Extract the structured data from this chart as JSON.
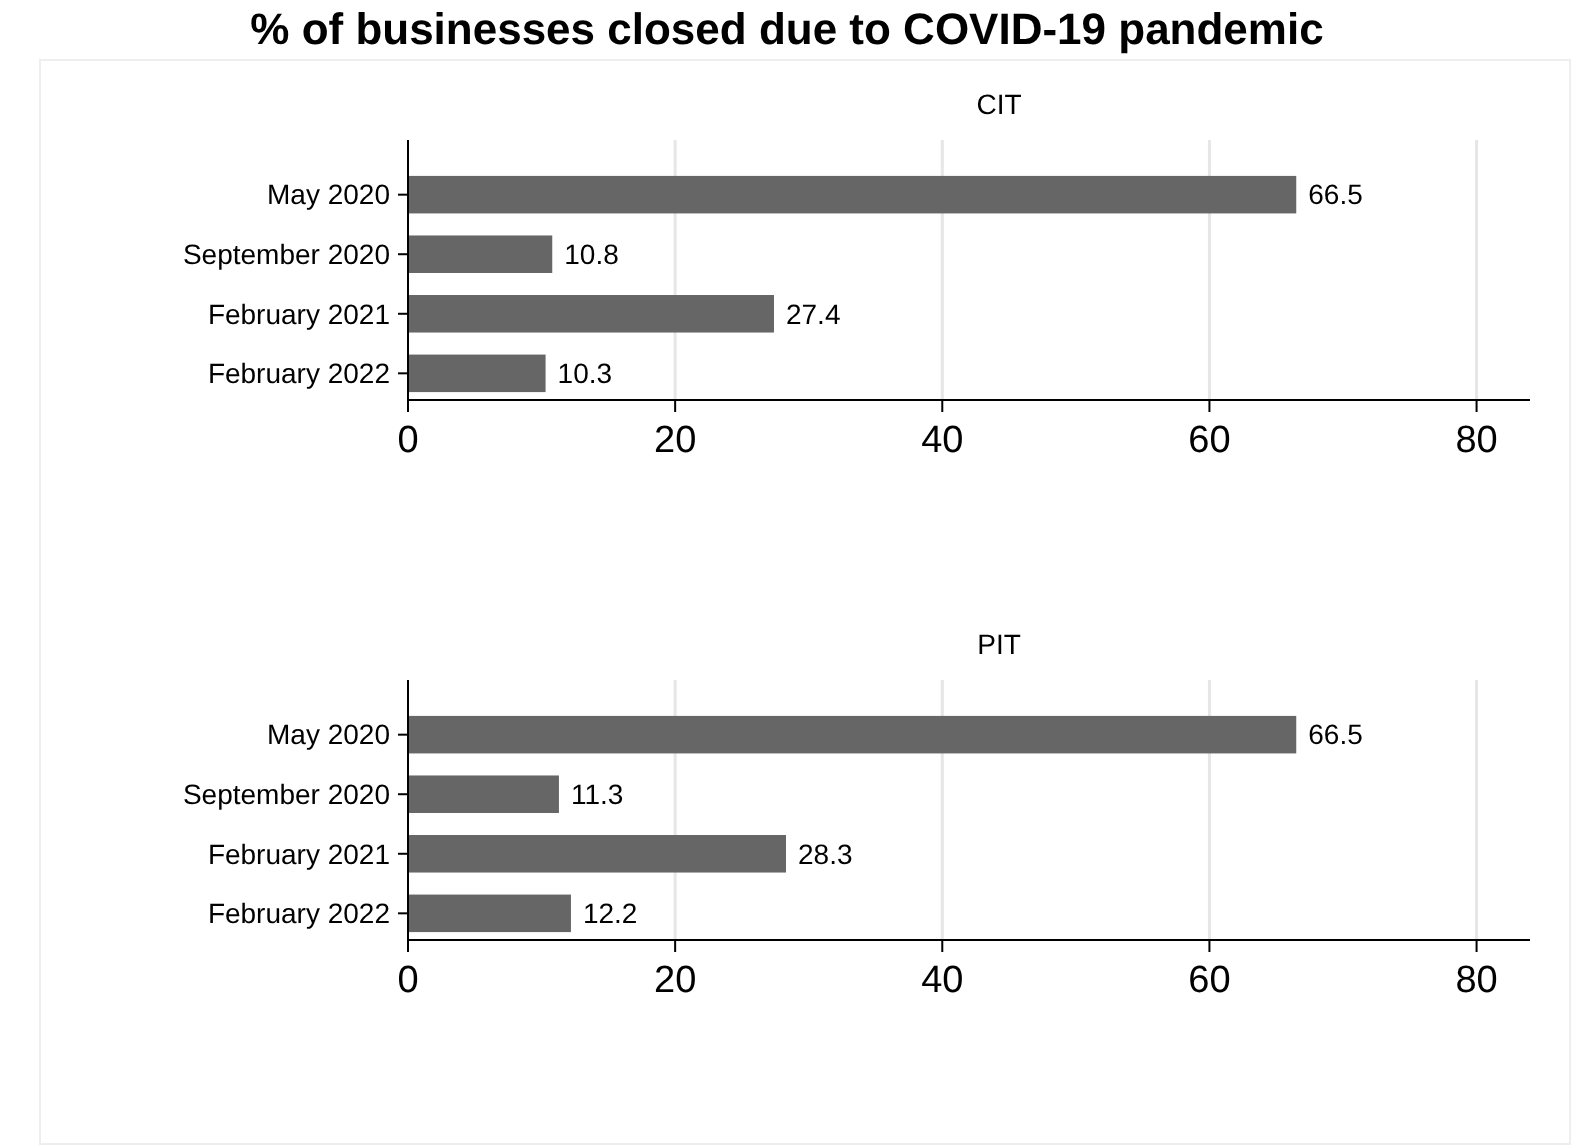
{
  "chart_data": [
    {
      "type": "bar",
      "orientation": "horizontal",
      "title": "% of businesses closed due to COVID-19 pandemic",
      "subtitle": "CIT",
      "categories": [
        "May 2020",
        "September 2020",
        "February 2021",
        "February 2022"
      ],
      "values": [
        66.5,
        10.8,
        27.4,
        10.3
      ],
      "color": "#666666",
      "xlim": [
        0,
        84
      ],
      "xticks": [
        0,
        20,
        40,
        60,
        80
      ],
      "grid": "x",
      "data_labels": true
    },
    {
      "type": "bar",
      "orientation": "horizontal",
      "subtitle": "PIT",
      "categories": [
        "May 2020",
        "September 2020",
        "February 2021",
        "February 2022"
      ],
      "values": [
        66.5,
        11.3,
        28.3,
        12.2
      ],
      "color": "#666666",
      "xlim": [
        0,
        84
      ],
      "xticks": [
        0,
        20,
        40,
        60,
        80
      ],
      "grid": "x",
      "data_labels": true
    }
  ]
}
